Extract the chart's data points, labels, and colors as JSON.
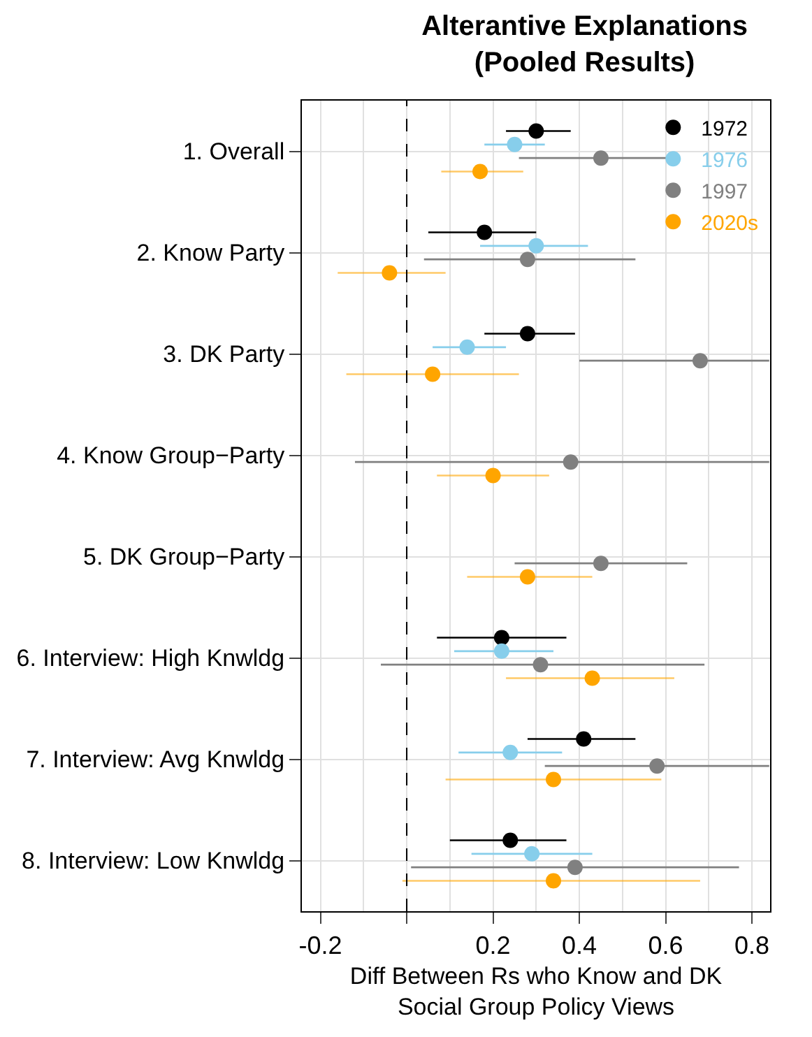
{
  "chart_data": {
    "type": "scatter",
    "title": "Alterantive Explanations\n(Pooled Results)",
    "xlabel": "Diff Between Rs who Know and DK\nSocial Group Policy Views",
    "categories": [
      "1. Overall",
      "2. Know Party",
      "3. DK Party",
      "4. Know Group−Party",
      "5. DK Group−Party",
      "6. Interview: High Knwldg",
      "7. Interview: Avg Knwldg",
      "8. Interview: Low Knwldg"
    ],
    "orientation": "horizontal",
    "series": [
      {
        "name": "1972",
        "color": "#000000",
        "values": [
          0.3,
          0.18,
          0.28,
          null,
          null,
          0.22,
          0.41,
          0.24
        ],
        "errors": [
          [
            0.23,
            0.38
          ],
          [
            0.05,
            0.3
          ],
          [
            0.18,
            0.39
          ],
          null,
          null,
          [
            0.07,
            0.37
          ],
          [
            0.28,
            0.53
          ],
          [
            0.1,
            0.37
          ]
        ]
      },
      {
        "name": "1976",
        "color": "#87ceeb",
        "values": [
          0.25,
          0.3,
          0.14,
          null,
          null,
          0.22,
          0.24,
          0.29
        ],
        "errors": [
          [
            0.18,
            0.32
          ],
          [
            0.17,
            0.42
          ],
          [
            0.06,
            0.23
          ],
          null,
          null,
          [
            0.11,
            0.34
          ],
          [
            0.12,
            0.36
          ],
          [
            0.15,
            0.43
          ]
        ]
      },
      {
        "name": "1997",
        "color": "#808080",
        "values": [
          0.45,
          0.28,
          0.68,
          0.38,
          0.45,
          0.31,
          0.58,
          0.39
        ],
        "errors": [
          [
            0.26,
            0.63
          ],
          [
            0.04,
            0.53
          ],
          [
            0.4,
            0.84
          ],
          [
            -0.12,
            0.84
          ],
          [
            0.25,
            0.65
          ],
          [
            -0.06,
            0.69
          ],
          [
            0.32,
            0.84
          ],
          [
            0.01,
            0.77
          ]
        ]
      },
      {
        "name": "2020s",
        "color": "#ffa500",
        "values": [
          0.17,
          -0.04,
          0.06,
          0.2,
          0.28,
          0.43,
          0.34,
          0.34
        ],
        "errors": [
          [
            0.08,
            0.27
          ],
          [
            -0.16,
            0.09
          ],
          [
            -0.14,
            0.26
          ],
          [
            0.07,
            0.33
          ],
          [
            0.14,
            0.43
          ],
          [
            0.23,
            0.62
          ],
          [
            0.09,
            0.59
          ],
          [
            -0.01,
            0.68
          ]
        ]
      }
    ],
    "xlim": [
      -0.243,
      0.842
    ],
    "xticks": [
      -0.2,
      {
        "value": 0,
        "label": null
      },
      0.2,
      0.4,
      0.6,
      0.8
    ],
    "ref_lines": [
      {
        "axis": "x",
        "value": 0,
        "line_style": "dashed",
        "color": "#000000"
      }
    ],
    "grid": true,
    "legend": "top right",
    "marker": "circle"
  }
}
